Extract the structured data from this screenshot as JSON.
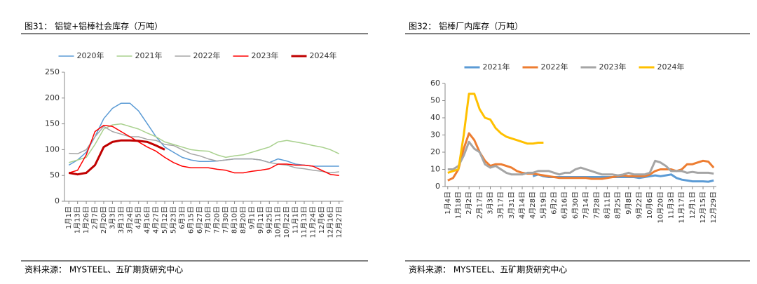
{
  "chart_data": [
    {
      "type": "line",
      "title": "图31： 铝锭+铝棒社会库存（万吨）",
      "source": "资料来源： MYSTEEL、五矿期货研究中心",
      "legend": "top",
      "categories": [
        "1月1日",
        "1月13日",
        "1月26日",
        "2月7日",
        "2月20日",
        "3月3日",
        "3月13日",
        "3月24日",
        "4月5日",
        "4月16日",
        "4月27日",
        "5月12日",
        "5月23日",
        "6月3日",
        "6月15日",
        "6月27日",
        "7月10日",
        "7月20日",
        "7月30日",
        "8月10日",
        "8月20日",
        "9月1日",
        "9月11日",
        "9月25日",
        "10月11日",
        "10月22日",
        "11月1日",
        "11月13日",
        "11月24日",
        "12月6日",
        "12月16日",
        "12月27日"
      ],
      "ylim": [
        0,
        250
      ],
      "yticks": [
        0,
        50,
        100,
        150,
        200,
        250
      ],
      "series": [
        {
          "name": "2020年",
          "color": "#5b9bd5",
          "width": 1.5,
          "values": [
            70,
            80,
            95,
            125,
            160,
            180,
            190,
            190,
            175,
            150,
            125,
            105,
            95,
            85,
            80,
            77,
            77,
            78,
            80,
            82,
            82,
            82,
            80,
            75,
            82,
            78,
            72,
            70,
            68,
            68,
            68,
            68
          ]
        },
        {
          "name": "2021年",
          "color": "#a9d18e",
          "width": 1.5,
          "values": [
            75,
            80,
            85,
            110,
            140,
            148,
            150,
            145,
            140,
            132,
            125,
            115,
            110,
            105,
            100,
            98,
            97,
            90,
            85,
            88,
            90,
            95,
            100,
            105,
            115,
            118,
            115,
            112,
            108,
            105,
            100,
            92
          ]
        },
        {
          "name": "2022年",
          "color": "#a5a5a5",
          "width": 1.5,
          "values": [
            93,
            92,
            100,
            125,
            145,
            135,
            130,
            125,
            125,
            120,
            118,
            110,
            108,
            100,
            92,
            88,
            82,
            78,
            80,
            82,
            82,
            82,
            80,
            75,
            72,
            70,
            65,
            63,
            60,
            58,
            55,
            57
          ]
        },
        {
          "name": "2023年",
          "color": "#ff0000",
          "width": 1.5,
          "values": [
            55,
            60,
            90,
            135,
            147,
            145,
            135,
            125,
            115,
            105,
            97,
            85,
            75,
            68,
            65,
            65,
            65,
            62,
            60,
            55,
            55,
            58,
            60,
            63,
            72,
            72,
            70,
            70,
            68,
            60,
            52,
            50
          ]
        },
        {
          "name": "2024年",
          "color": "#c00000",
          "width": 3,
          "values": [
            55,
            52,
            55,
            70,
            105,
            115,
            118,
            118,
            117,
            115,
            108,
            100,
            null,
            null,
            null,
            null,
            null,
            null,
            null,
            null,
            null,
            null,
            null,
            null,
            null,
            null,
            null,
            null,
            null,
            null,
            null,
            null
          ]
        }
      ]
    },
    {
      "type": "line",
      "title": "图32： 铝棒厂内库存（万吨）",
      "source": "资料来源： MYSTEEL、五矿期货研究中心",
      "legend": "top",
      "categories": [
        "1月4日",
        null,
        "1月18日",
        null,
        "2月2日",
        null,
        "2月17日",
        null,
        "3月3日",
        null,
        "3月17日",
        null,
        "3月31日",
        null,
        "4月14日",
        null,
        "4月28日",
        null,
        "5月19日",
        null,
        "6月2日",
        null,
        "6月16日",
        null,
        "6月30日",
        null,
        "7月14日",
        null,
        "7月28日",
        null,
        "8月11日",
        null,
        "8月25日",
        null,
        "9月8日",
        null,
        "9月22日",
        null,
        "10月6日",
        null,
        "10月20日",
        null,
        "11月3日",
        null,
        "11月17日",
        null,
        "12月1日",
        null,
        "12月15日",
        null,
        "12月29日"
      ],
      "ylim": [
        0,
        60
      ],
      "yticks": [
        0,
        10,
        20,
        30,
        40,
        50,
        60
      ],
      "series": [
        {
          "name": "2021年",
          "color": "#5b9bd5",
          "width": 3,
          "values": [
            null,
            null,
            null,
            null,
            null,
            null,
            null,
            null,
            null,
            null,
            null,
            null,
            null,
            null,
            null,
            null,
            6,
            7,
            6,
            5.5,
            5.5,
            5.5,
            5.5,
            5.5,
            5.5,
            5.5,
            5.5,
            5.5,
            5.5,
            5.5,
            5.5,
            5.5,
            5.5,
            5.5,
            5.5,
            5.5,
            5,
            5.5,
            6,
            6.5,
            6,
            6.5,
            7,
            5,
            4,
            3.5,
            3,
            3,
            3,
            2.8,
            3.5
          ]
        },
        {
          "name": "2022年",
          "color": "#ed7d31",
          "width": 3,
          "values": [
            3.5,
            5,
            10,
            22,
            31,
            27,
            20,
            15,
            12,
            13,
            13,
            12,
            11,
            9,
            8,
            7.5,
            7.5,
            7,
            6.5,
            6,
            5.5,
            5,
            5,
            5,
            5,
            5,
            5,
            4.5,
            4.5,
            4.5,
            5,
            5.5,
            6,
            6.5,
            6,
            6,
            6,
            6,
            7,
            9,
            10,
            10,
            10,
            9,
            10,
            13,
            13,
            14,
            15,
            14.5,
            11
          ]
        },
        {
          "name": "2023年",
          "color": "#a5a5a5",
          "width": 3,
          "values": [
            10,
            10,
            12,
            18,
            26,
            22,
            20,
            13,
            11,
            12,
            10,
            8,
            7,
            7,
            7,
            8,
            8,
            9,
            9,
            9,
            8,
            7,
            8,
            8,
            10,
            11,
            10,
            9,
            8,
            7,
            7,
            7,
            6.5,
            7,
            8,
            7,
            7,
            7,
            8,
            15,
            14,
            12,
            9,
            9,
            9,
            8,
            8.5,
            8,
            8,
            8,
            7.5
          ]
        },
        {
          "name": "2024年",
          "color": "#ffc000",
          "width": 3,
          "values": [
            8,
            9,
            10,
            30,
            54,
            54,
            45,
            40,
            39,
            34,
            31,
            29,
            28,
            27,
            26,
            25,
            25,
            25.5,
            25.5,
            null,
            null,
            null,
            null,
            null,
            null,
            null,
            null,
            null,
            null,
            null,
            null,
            null,
            null,
            null,
            null,
            null,
            null,
            null,
            null,
            null,
            null,
            null,
            null,
            null,
            null,
            null,
            null,
            null,
            null,
            null,
            null
          ]
        }
      ]
    }
  ]
}
